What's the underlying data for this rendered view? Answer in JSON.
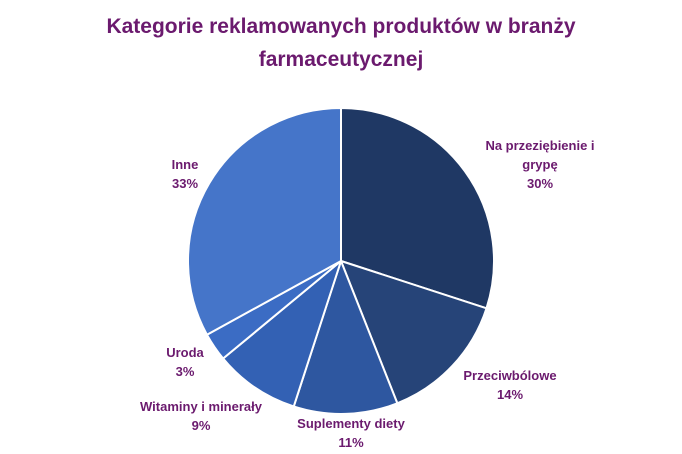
{
  "chart_data": {
    "type": "pie",
    "title_lines": [
      "Kategorie reklamowanych produktów w branży",
      "farmaceutycznej"
    ],
    "legend": "none",
    "slices": [
      {
        "label_lines": [
          "Na przeziębienie i",
          "grypę"
        ],
        "percent_label": "30%",
        "value": 30,
        "color": "#1f3864"
      },
      {
        "label_lines": [
          "Przeciwbólowe"
        ],
        "percent_label": "14%",
        "value": 14,
        "color": "#264478"
      },
      {
        "label_lines": [
          "Suplementy diety"
        ],
        "percent_label": "11%",
        "value": 11,
        "color": "#2e57a0"
      },
      {
        "label_lines": [
          "Witaminy i minerały"
        ],
        "percent_label": "9%",
        "value": 9,
        "color": "#3361b4"
      },
      {
        "label_lines": [
          "Uroda"
        ],
        "percent_label": "3%",
        "value": 3,
        "color": "#3b6cc4"
      },
      {
        "label_lines": [
          "Inne"
        ],
        "percent_label": "33%",
        "value": 33,
        "color": "#4575c9"
      }
    ]
  }
}
